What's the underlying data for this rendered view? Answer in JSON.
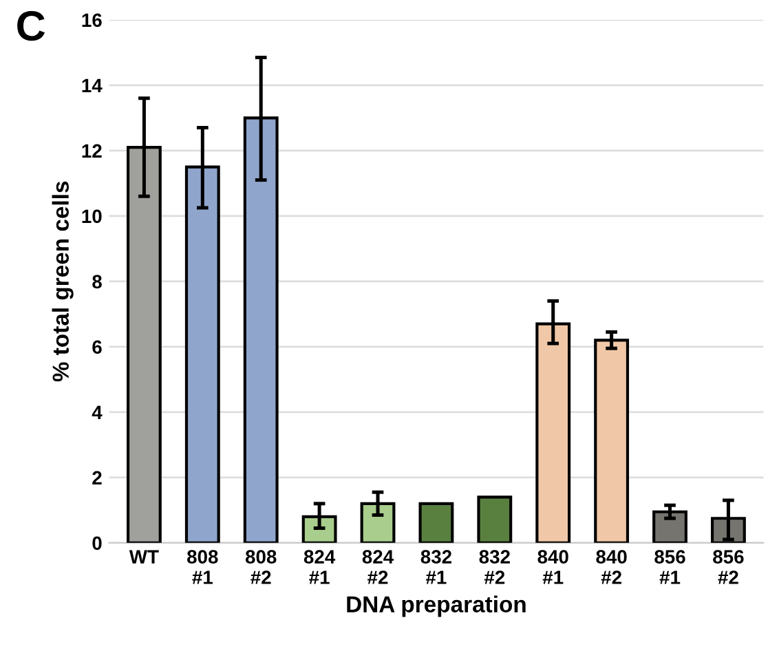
{
  "chart_data": {
    "type": "bar",
    "title": "C",
    "xlabel": "DNA preparation",
    "ylabel": "% total green cells",
    "categories": [
      "WT",
      "808\n#1",
      "808\n#2",
      "824\n#1",
      "824\n#2",
      "832\n#1",
      "832\n#2",
      "840\n#1",
      "840\n#2",
      "856\n#1",
      "856\n#2"
    ],
    "values": [
      12.1,
      11.5,
      13.0,
      0.8,
      1.2,
      1.2,
      1.4,
      6.7,
      6.2,
      0.95,
      0.75
    ],
    "errors": [
      [
        10.6,
        13.6
      ],
      [
        10.25,
        12.7
      ],
      [
        11.1,
        14.85
      ],
      [
        0.45,
        1.2
      ],
      [
        0.85,
        1.55
      ],
      null,
      null,
      [
        6.1,
        7.4
      ],
      [
        5.95,
        6.45
      ],
      [
        0.75,
        1.15
      ],
      [
        0.1,
        1.3
      ]
    ],
    "colors": [
      "#a0a09c",
      "#8fa5cb",
      "#8fa5cb",
      "#a9cd8c",
      "#a9cd8c",
      "#5a8040",
      "#5a8040",
      "#f1c8a7",
      "#f1c8a7",
      "#76746f",
      "#76746f"
    ],
    "ylim": [
      0,
      16
    ],
    "yticks": [
      0,
      2,
      4,
      6,
      8,
      10,
      12,
      14,
      16
    ],
    "grid": "y"
  }
}
